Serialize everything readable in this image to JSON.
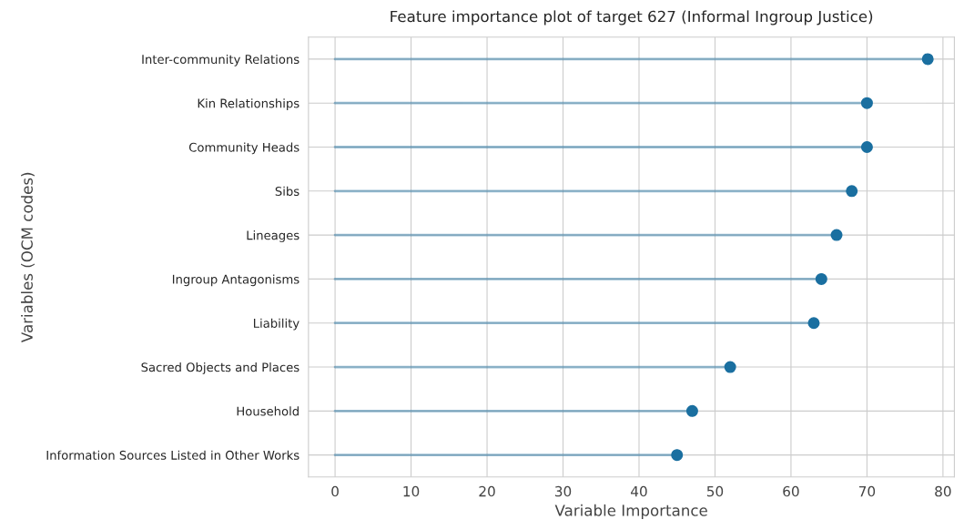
{
  "chart_data": {
    "type": "lollipop",
    "orientation": "horizontal",
    "title": "Feature importance plot of target 627 (Informal Ingroup Justice)",
    "xlabel": "Variable Importance",
    "ylabel": "Variables (OCM codes)",
    "categories": [
      "Inter-community Relations",
      "Kin Relationships",
      "Community Heads",
      "Sibs",
      "Lineages",
      "Ingroup Antagonisms",
      "Liability",
      "Sacred Objects and Places",
      "Household",
      "Information Sources Listed in Other Works"
    ],
    "values": [
      78,
      70,
      70,
      68,
      66,
      64,
      63,
      52,
      47,
      45
    ],
    "color": "#1a6fa0",
    "marker": "circle",
    "xlim": [
      -3.5,
      81.5
    ],
    "xticks": [
      0,
      10,
      20,
      30,
      40,
      50,
      60,
      70,
      80
    ],
    "grid": true
  }
}
